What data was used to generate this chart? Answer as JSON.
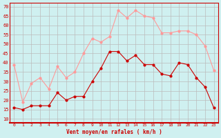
{
  "x": [
    0,
    1,
    2,
    3,
    4,
    5,
    6,
    7,
    8,
    9,
    10,
    11,
    12,
    13,
    14,
    15,
    16,
    17,
    18,
    19,
    20,
    21,
    22,
    23
  ],
  "wind_avg": [
    16,
    15,
    17,
    17,
    17,
    24,
    20,
    22,
    22,
    30,
    37,
    46,
    46,
    41,
    44,
    39,
    39,
    34,
    33,
    40,
    39,
    32,
    27,
    16
  ],
  "wind_gust": [
    39,
    19,
    29,
    32,
    26,
    38,
    32,
    35,
    45,
    53,
    51,
    54,
    68,
    64,
    68,
    65,
    64,
    56,
    56,
    57,
    57,
    55,
    49,
    36
  ],
  "bg_color": "#cff0f0",
  "avg_color": "#cc0000",
  "gust_color": "#ff9999",
  "grid_color": "#bbbbbb",
  "axis_color": "#cc0000",
  "xlabel": "Vent moyen/en rafales ( km/h )",
  "ylabel_ticks": [
    10,
    15,
    20,
    25,
    30,
    35,
    40,
    45,
    50,
    55,
    60,
    65,
    70
  ],
  "ylim": [
    8,
    72
  ],
  "xlim": [
    -0.5,
    23.5
  ],
  "tick_arrow_symbol": "←"
}
